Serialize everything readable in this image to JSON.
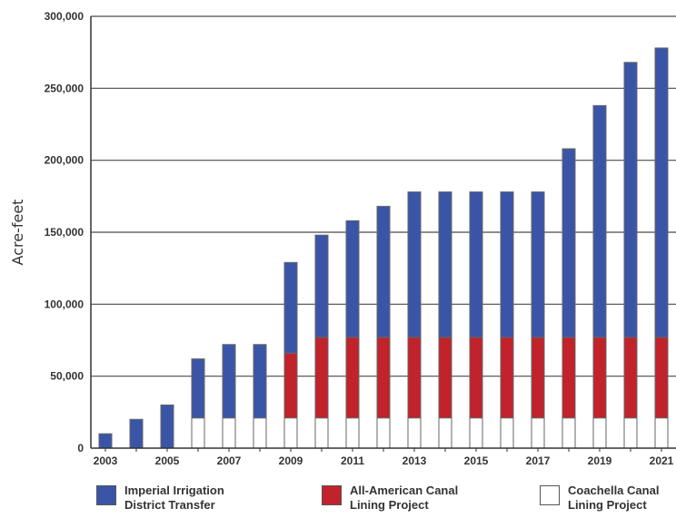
{
  "chart_data": {
    "type": "bar",
    "stacked": true,
    "ylabel": "Acre-feet",
    "ylim": [
      0,
      300000
    ],
    "yticks": [
      0,
      50000,
      100000,
      150000,
      200000,
      250000,
      300000
    ],
    "ytick_labels": [
      "0",
      "50,000",
      "100,000",
      "150,000",
      "200,000",
      "250,000",
      "300,000"
    ],
    "grid": true,
    "legend_position": "bottom",
    "categories": [
      "2003",
      "2004",
      "2005",
      "2006",
      "2007",
      "2008",
      "2009",
      "2010",
      "2011",
      "2012",
      "2013",
      "2014",
      "2015",
      "2016",
      "2017",
      "2018",
      "2019",
      "2020",
      "2021"
    ],
    "xtick_labels": [
      "2003",
      "",
      "2005",
      "",
      "2007",
      "",
      "2009",
      "",
      "2011",
      "",
      "2013",
      "",
      "2015",
      "",
      "2017",
      "",
      "2019",
      "",
      "2021"
    ],
    "series": [
      {
        "name": "Coachella Canal Lining Project",
        "color": "#ffffff",
        "values": [
          0,
          0,
          0,
          21000,
          21000,
          21000,
          21000,
          21000,
          21000,
          21000,
          21000,
          21000,
          21000,
          21000,
          21000,
          21000,
          21000,
          21000,
          21000
        ]
      },
      {
        "name": "All-American Canal Lining Project",
        "color": "#c1222b",
        "values": [
          0,
          0,
          0,
          0,
          0,
          0,
          45000,
          56000,
          56000,
          56000,
          56000,
          56000,
          56000,
          56000,
          56000,
          56000,
          56000,
          56000,
          56000
        ]
      },
      {
        "name": "Imperial Irrigation District Transfer",
        "color": "#3a55a8",
        "values": [
          10000,
          20000,
          30000,
          41000,
          51000,
          51000,
          63000,
          71000,
          81000,
          91000,
          101000,
          101000,
          101000,
          101000,
          101000,
          131000,
          161000,
          191000,
          201000
        ]
      }
    ]
  },
  "legend": [
    {
      "lines": [
        "Imperial Irrigation",
        "District Transfer"
      ],
      "color": "#3a55a8"
    },
    {
      "lines": [
        "All-American Canal",
        "Lining Project"
      ],
      "color": "#c1222b"
    },
    {
      "lines": [
        "Coachella Canal",
        "Lining Project"
      ],
      "color": "#ffffff"
    }
  ]
}
